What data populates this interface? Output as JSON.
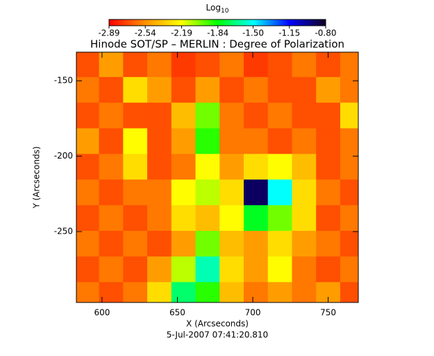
{
  "chart_data": {
    "type": "heatmap",
    "title": "Hinode SOT/SP – MERLIN : Degree of Polarization",
    "x_label": "X (Arcseconds)",
    "y_label": "Y (Arcseconds)",
    "footer": "5-Jul-2007 07:41:20.810",
    "colorbar_label": "Log",
    "colorbar_label_sub": "10",
    "xlim": [
      583,
      770
    ],
    "ylim": [
      -297,
      -131
    ],
    "xticks": [
      600,
      650,
      700,
      750
    ],
    "yticks": [
      -250,
      -200,
      -150
    ],
    "zlim": [
      -2.89,
      -0.8
    ],
    "colorbar_ticks": [
      -2.89,
      -2.54,
      -2.19,
      -1.84,
      {
        "value": -1.5,
        "label": "-1.50"
      },
      -1.15,
      {
        "value": -0.8,
        "label": "-0.80"
      }
    ],
    "colormap": [
      "#ff0000",
      "#ff9000",
      "#ffff00",
      "#00ff00",
      "#00ffff",
      "#0000ff",
      "#100020"
    ],
    "x": [
      590,
      606,
      622,
      638,
      654,
      670,
      686,
      702,
      718,
      734,
      750,
      766
    ],
    "y": [
      -139,
      -156,
      -173,
      -190,
      -207,
      -224,
      -241,
      -258,
      -275,
      -292
    ],
    "z": [
      [
        -2.7,
        -2.5,
        -2.7,
        -2.6,
        -2.75,
        -2.7,
        -2.6,
        -2.75,
        -2.7,
        -2.6,
        -2.7,
        -2.6
      ],
      [
        -2.6,
        -2.7,
        -2.3,
        -2.5,
        -2.7,
        -2.5,
        -2.7,
        -2.6,
        -2.7,
        -2.7,
        -2.5,
        -2.6
      ],
      [
        -2.7,
        -2.6,
        -2.7,
        -2.7,
        -2.4,
        -2.0,
        -2.6,
        -2.7,
        -2.6,
        -2.7,
        -2.7,
        -2.3
      ],
      [
        -2.5,
        -2.7,
        -2.2,
        -2.7,
        -2.5,
        -1.9,
        -2.6,
        -2.6,
        -2.7,
        -2.6,
        -2.7,
        -2.6
      ],
      [
        -2.7,
        -2.6,
        -2.3,
        -2.7,
        -2.6,
        -2.2,
        -2.5,
        -2.3,
        -2.2,
        -2.4,
        -2.7,
        -2.6
      ],
      [
        -2.6,
        -2.7,
        -2.6,
        -2.6,
        -2.2,
        -2.1,
        -2.3,
        -0.9,
        -1.5,
        -2.3,
        -2.6,
        -2.7
      ],
      [
        -2.7,
        -2.6,
        -2.7,
        -2.6,
        -2.3,
        -2.4,
        -2.2,
        -1.8,
        -2.0,
        -2.3,
        -2.7,
        -2.6
      ],
      [
        -2.6,
        -2.7,
        -2.6,
        -2.7,
        -2.5,
        -2.0,
        -2.4,
        -2.5,
        -2.3,
        -2.5,
        -2.6,
        -2.7
      ],
      [
        -2.7,
        -2.6,
        -2.7,
        -2.5,
        -2.1,
        -1.6,
        -2.3,
        -2.5,
        -2.2,
        -2.6,
        -2.7,
        -2.6
      ],
      [
        -2.6,
        -2.7,
        -2.6,
        -2.3,
        -1.7,
        -1.9,
        -2.4,
        -2.6,
        -2.5,
        -2.6,
        -2.5,
        -2.7
      ]
    ]
  }
}
